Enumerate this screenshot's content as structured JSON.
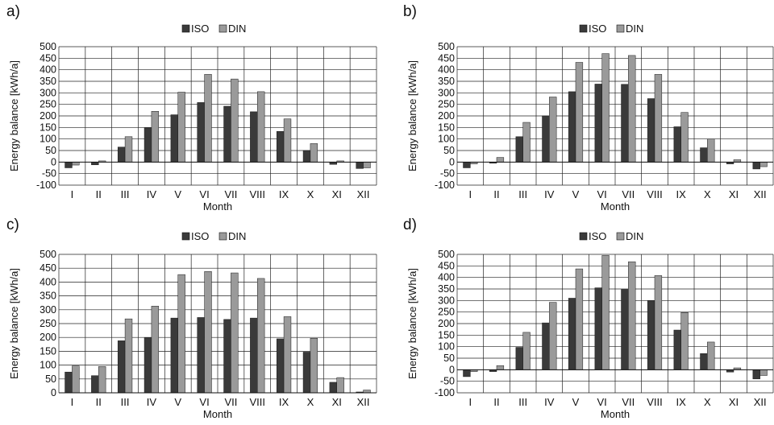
{
  "colors": {
    "iso": "#3a3a3a",
    "din": "#9a9a9a",
    "grid": "#222222",
    "text": "#111111"
  },
  "chart_data": [
    {
      "panel_label": "a)",
      "type": "bar",
      "categories": [
        "I",
        "II",
        "III",
        "IV",
        "V",
        "VI",
        "VII",
        "VIII",
        "IX",
        "X",
        "XI",
        "XII"
      ],
      "series": [
        {
          "name": "ISO",
          "values": [
            -25,
            -12,
            65,
            148,
            205,
            258,
            242,
            218,
            133,
            50,
            -10,
            -28
          ]
        },
        {
          "name": "DIN",
          "values": [
            -13,
            5,
            110,
            220,
            303,
            380,
            360,
            305,
            187,
            80,
            5,
            -25
          ]
        }
      ],
      "xlabel": "Month",
      "ylabel": "Energy balance [kWh/a]",
      "ylim": [
        -100,
        500
      ],
      "yticks": [
        -100,
        -50,
        0,
        50,
        100,
        150,
        200,
        250,
        300,
        350,
        400,
        450,
        500
      ],
      "grid": true,
      "legend": "top-center"
    },
    {
      "panel_label": "b)",
      "type": "bar",
      "categories": [
        "I",
        "II",
        "III",
        "IV",
        "V",
        "VI",
        "VII",
        "VIII",
        "IX",
        "X",
        "XI",
        "XII"
      ],
      "series": [
        {
          "name": "ISO",
          "values": [
            -25,
            -5,
            110,
            200,
            305,
            338,
            337,
            275,
            153,
            62,
            -8,
            -30
          ]
        },
        {
          "name": "DIN",
          "values": [
            -8,
            20,
            172,
            282,
            432,
            470,
            462,
            380,
            215,
            100,
            10,
            -20
          ]
        }
      ],
      "xlabel": "Month",
      "ylabel": "Energy balance [kWh/a]",
      "ylim": [
        -100,
        500
      ],
      "yticks": [
        -100,
        -50,
        0,
        50,
        100,
        150,
        200,
        250,
        300,
        350,
        400,
        450,
        500
      ],
      "grid": true,
      "legend": "top-center"
    },
    {
      "panel_label": "c)",
      "type": "bar",
      "categories": [
        "I",
        "II",
        "III",
        "IV",
        "V",
        "VI",
        "VII",
        "VIII",
        "IX",
        "X",
        "XI",
        "XII"
      ],
      "series": [
        {
          "name": "ISO",
          "values": [
            75,
            62,
            188,
            200,
            270,
            272,
            265,
            270,
            195,
            147,
            38,
            3
          ]
        },
        {
          "name": "DIN",
          "values": [
            97,
            95,
            267,
            313,
            427,
            438,
            433,
            413,
            275,
            197,
            55,
            10
          ]
        }
      ],
      "xlabel": "Month",
      "ylabel": "Energy balance [kWh/a]",
      "ylim": [
        0,
        500
      ],
      "yticks": [
        0,
        50,
        100,
        150,
        200,
        250,
        300,
        350,
        400,
        450,
        500
      ],
      "grid": true,
      "legend": "top-center"
    },
    {
      "panel_label": "d)",
      "type": "bar",
      "categories": [
        "I",
        "II",
        "III",
        "IV",
        "V",
        "VI",
        "VII",
        "VIII",
        "IX",
        "X",
        "XI",
        "XII"
      ],
      "series": [
        {
          "name": "ISO",
          "values": [
            -30,
            -8,
            97,
            203,
            310,
            355,
            348,
            300,
            172,
            70,
            -10,
            -40
          ]
        },
        {
          "name": "DIN",
          "values": [
            -8,
            18,
            162,
            292,
            437,
            495,
            468,
            408,
            248,
            120,
            8,
            -25
          ]
        }
      ],
      "xlabel": "Month",
      "ylabel": "Energy balance [kWh/a]",
      "ylim": [
        -100,
        500
      ],
      "yticks": [
        -100,
        -50,
        0,
        50,
        100,
        150,
        200,
        250,
        300,
        350,
        400,
        450,
        500
      ],
      "grid": true,
      "legend": "top-center"
    }
  ]
}
